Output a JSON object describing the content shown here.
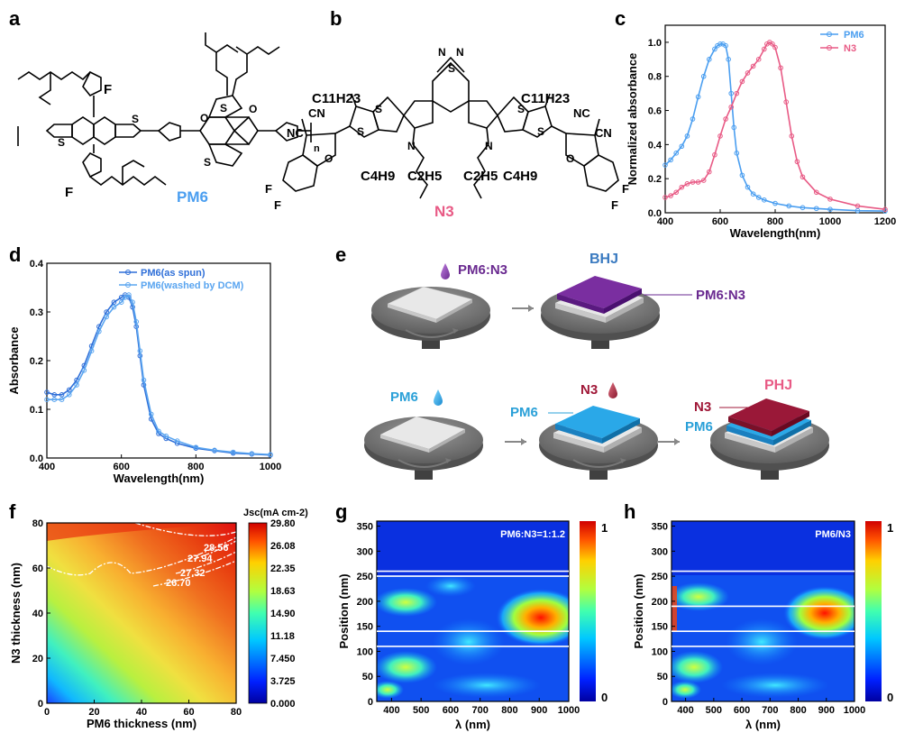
{
  "panels": {
    "a": {
      "label": "a",
      "name": "PM6",
      "atoms": {
        "F": "F",
        "S": "S",
        "O": "O",
        "n": "n"
      }
    },
    "b": {
      "label": "b",
      "name": "N3",
      "chains": {
        "c11h23": "C11H23",
        "c4h9": "C4H9",
        "c2h5": "C2H5",
        "cn": "CN",
        "nc": "NC"
      },
      "atoms": {
        "F": "F",
        "S": "S",
        "N": "N",
        "O": "O"
      }
    },
    "c": {
      "label": "c"
    },
    "d": {
      "label": "d"
    },
    "e": {
      "label": "e",
      "bhj_title": "BHJ",
      "phj_title": "PHJ",
      "drop_pm6n3": "PM6:N3",
      "layer_pm6n3": "PM6:N3",
      "drop_pm6": "PM6",
      "layer_pm6": "PM6",
      "drop_n3": "N3",
      "layer_n3": "N3",
      "layer_pm6_b": "PM6"
    },
    "f": {
      "label": "f"
    },
    "g": {
      "label": "g"
    },
    "h": {
      "label": "h"
    }
  },
  "chart_data": [
    {
      "id": "c",
      "type": "line",
      "xlabel": "Wavelength(nm)",
      "ylabel": "Normalized absorbance",
      "xlim": [
        400,
        1200
      ],
      "ylim": [
        0,
        1.1
      ],
      "xticks": [
        "400",
        "600",
        "800",
        "1000",
        "1200"
      ],
      "yticks": [
        "0.0",
        "0.2",
        "0.4",
        "0.6",
        "0.8",
        "1.0"
      ],
      "series": [
        {
          "name": "PM6",
          "color": "#4a9ef0",
          "x": [
            400,
            420,
            440,
            460,
            480,
            500,
            520,
            540,
            560,
            580,
            590,
            600,
            610,
            620,
            630,
            640,
            650,
            660,
            680,
            700,
            720,
            740,
            760,
            800,
            850,
            900,
            950,
            1000,
            1100,
            1200
          ],
          "y": [
            0.28,
            0.31,
            0.35,
            0.39,
            0.45,
            0.55,
            0.68,
            0.8,
            0.9,
            0.96,
            0.98,
            0.99,
            0.99,
            0.98,
            0.9,
            0.7,
            0.5,
            0.35,
            0.22,
            0.15,
            0.11,
            0.09,
            0.075,
            0.055,
            0.04,
            0.03,
            0.025,
            0.02,
            0.012,
            0.01
          ]
        },
        {
          "name": "N3",
          "color": "#e85a85",
          "x": [
            400,
            420,
            440,
            460,
            480,
            500,
            520,
            540,
            560,
            580,
            600,
            620,
            640,
            660,
            680,
            700,
            720,
            740,
            760,
            770,
            780,
            790,
            800,
            820,
            840,
            860,
            880,
            900,
            950,
            1000,
            1100,
            1200
          ],
          "y": [
            0.09,
            0.1,
            0.12,
            0.15,
            0.17,
            0.18,
            0.18,
            0.19,
            0.24,
            0.34,
            0.45,
            0.55,
            0.62,
            0.7,
            0.77,
            0.82,
            0.86,
            0.9,
            0.96,
            0.99,
            1.0,
            0.99,
            0.97,
            0.85,
            0.65,
            0.45,
            0.3,
            0.21,
            0.12,
            0.08,
            0.04,
            0.02
          ]
        }
      ]
    },
    {
      "id": "d",
      "type": "line",
      "xlabel": "Wavelength(nm)",
      "ylabel": "Absorbance",
      "xlim": [
        400,
        1000
      ],
      "ylim": [
        0,
        0.4
      ],
      "xticks": [
        "400",
        "600",
        "800",
        "1000"
      ],
      "yticks": [
        "0.0",
        "0.1",
        "0.2",
        "0.3",
        "0.4"
      ],
      "series": [
        {
          "name": "PM6(as spun)",
          "color": "#2f6fd8",
          "x": [
            400,
            420,
            440,
            460,
            480,
            500,
            520,
            540,
            560,
            580,
            600,
            610,
            620,
            630,
            640,
            650,
            660,
            680,
            700,
            720,
            750,
            800,
            850,
            900,
            950,
            1000
          ],
          "y": [
            0.135,
            0.13,
            0.13,
            0.14,
            0.16,
            0.19,
            0.23,
            0.27,
            0.3,
            0.32,
            0.33,
            0.335,
            0.33,
            0.31,
            0.27,
            0.21,
            0.15,
            0.08,
            0.05,
            0.04,
            0.03,
            0.02,
            0.015,
            0.01,
            0.008,
            0.006
          ]
        },
        {
          "name": "PM6(washed by DCM)",
          "color": "#5aa5f0",
          "x": [
            400,
            420,
            440,
            460,
            480,
            500,
            520,
            540,
            560,
            580,
            600,
            610,
            620,
            630,
            640,
            650,
            660,
            680,
            700,
            720,
            750,
            800,
            850,
            900,
            950,
            1000
          ],
          "y": [
            0.12,
            0.12,
            0.12,
            0.13,
            0.15,
            0.18,
            0.22,
            0.26,
            0.29,
            0.31,
            0.32,
            0.33,
            0.335,
            0.32,
            0.28,
            0.22,
            0.16,
            0.09,
            0.055,
            0.045,
            0.035,
            0.022,
            0.016,
            0.012,
            0.009,
            0.007
          ]
        }
      ]
    },
    {
      "id": "f",
      "type": "heatmap",
      "xlabel": "PM6 thickness (nm)",
      "ylabel": "N3 thickness (nm)",
      "xlim": [
        0,
        80
      ],
      "ylim": [
        0,
        80
      ],
      "xticks": [
        "0",
        "20",
        "40",
        "60",
        "80"
      ],
      "yticks": [
        "0",
        "20",
        "40",
        "60",
        "80"
      ],
      "colorbar_title": "Jsc(mA cm-2)",
      "colorbar_ticks": [
        "29.80",
        "26.08",
        "22.35",
        "18.63",
        "14.90",
        "11.18",
        "7.450",
        "3.725",
        "0.000"
      ],
      "contours": [
        "28.56",
        "27.94",
        "27.32",
        "26.70"
      ]
    },
    {
      "id": "g",
      "type": "heatmap",
      "title": "PM6:N3=1:1.2",
      "xlabel": "λ (nm)",
      "ylabel": "Position (nm)",
      "xlim": [
        350,
        1000
      ],
      "ylim": [
        0,
        360
      ],
      "xticks": [
        "400",
        "500",
        "600",
        "700",
        "800",
        "900",
        "1000"
      ],
      "yticks": [
        "0",
        "50",
        "100",
        "150",
        "200",
        "250",
        "300",
        "350"
      ],
      "interfaces": [
        110,
        140,
        250,
        260
      ],
      "colorbar_ticks": [
        "1",
        "0"
      ]
    },
    {
      "id": "h",
      "type": "heatmap",
      "title": "PM6/N3",
      "xlabel": "λ (nm)",
      "ylabel": "Position (nm)",
      "xlim": [
        350,
        1000
      ],
      "ylim": [
        0,
        360
      ],
      "xticks": [
        "400",
        "500",
        "600",
        "700",
        "800",
        "900",
        "1000"
      ],
      "yticks": [
        "0",
        "50",
        "100",
        "150",
        "200",
        "250",
        "300",
        "350"
      ],
      "interfaces": [
        110,
        140,
        190,
        260
      ],
      "colorbar_ticks": [
        "1",
        "0"
      ]
    }
  ]
}
